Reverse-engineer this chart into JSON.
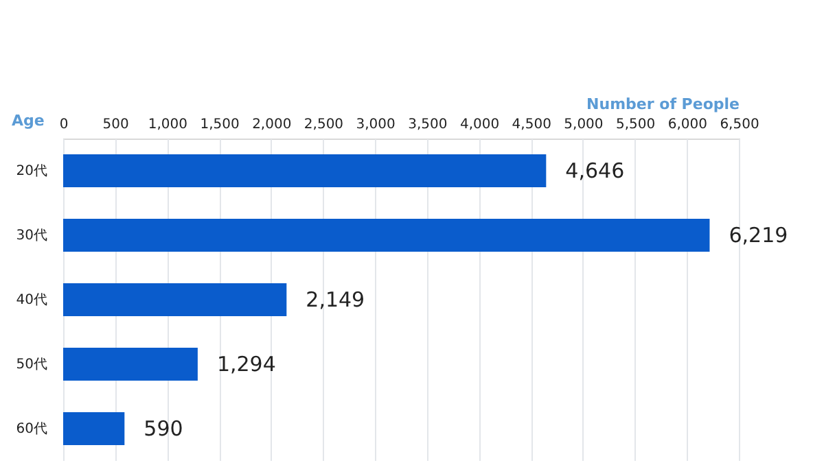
{
  "chart_data": {
    "type": "bar",
    "orientation": "horizontal",
    "xlabel": "Number of People",
    "ylabel": "Age",
    "categories": [
      "20代",
      "30代",
      "40代",
      "50代",
      "60代"
    ],
    "values": [
      4646,
      6219,
      2149,
      1294,
      590
    ],
    "value_labels": [
      "4,646",
      "6,219",
      "2,149",
      "1,294",
      "590"
    ],
    "color": "#0a5ccc",
    "xlim": [
      0,
      6500
    ],
    "xticks": [
      0,
      500,
      {
        "value": 1000,
        "label": "1,000"
      },
      {
        "value": 1500,
        "label": "1,500"
      },
      {
        "value": 2000,
        "label": "2,000"
      },
      {
        "value": 2500,
        "label": "2,500"
      },
      {
        "value": 3000,
        "label": "3,000"
      },
      {
        "value": 3500,
        "label": "3,500"
      },
      {
        "value": 4000,
        "label": "4,000"
      },
      {
        "value": 4500,
        "label": "4,500"
      },
      {
        "value": 5000,
        "label": "5,000"
      },
      {
        "value": 5500,
        "label": "5,500"
      },
      {
        "value": 6000,
        "label": "6,000"
      },
      {
        "value": 6500,
        "label": "6,500"
      }
    ],
    "grid": "x"
  }
}
